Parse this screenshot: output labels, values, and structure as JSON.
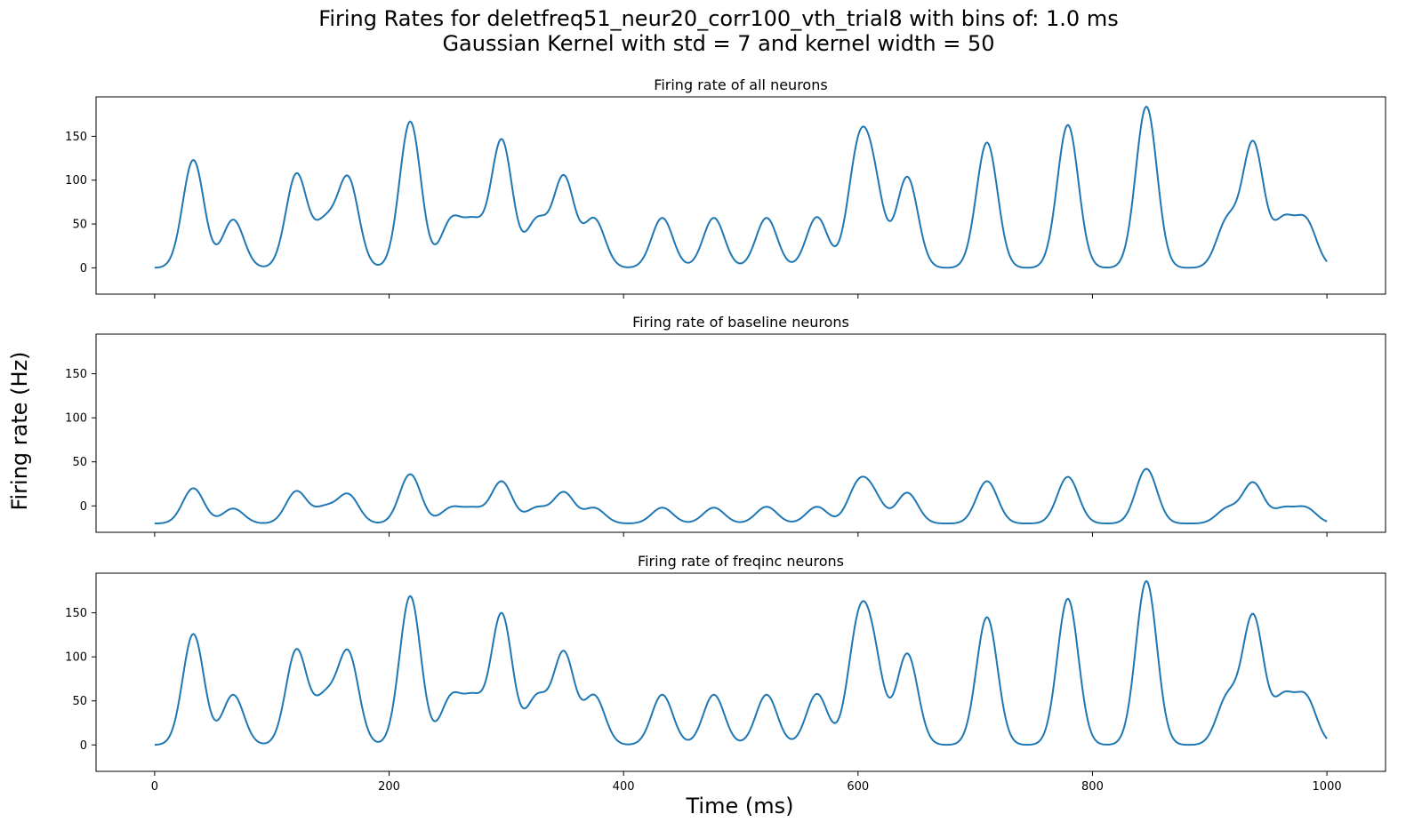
{
  "title_line1": "Firing Rates for deletfreq51_neur20_corr100_vth_trial8 with bins of: 1.0 ms",
  "title_line2": "Gaussian Kernel with std = 7 and kernel width = 50",
  "xlabel": "Time (ms)",
  "ylabel": "Firing rate (Hz)",
  "chart_data": [
    {
      "type": "line",
      "title": "Firing rate of all neurons",
      "xlim": [
        -50,
        1050
      ],
      "ylim": [
        -30,
        195
      ],
      "yticks": [
        0,
        50,
        100,
        150
      ],
      "xticks": [
        0,
        200,
        400,
        600,
        800,
        1000
      ],
      "color": "#1f77b4",
      "peaks": [
        [
          33,
          123
        ],
        [
          67,
          55
        ],
        [
          121,
          108
        ],
        [
          145,
          60
        ],
        [
          165,
          105
        ],
        [
          218,
          167
        ],
        [
          253,
          58
        ],
        [
          272,
          58
        ],
        [
          296,
          147
        ],
        [
          326,
          58
        ],
        [
          349,
          106
        ],
        [
          375,
          57
        ],
        [
          433,
          57
        ],
        [
          477,
          57
        ],
        [
          522,
          57
        ],
        [
          565,
          58
        ],
        [
          600,
          150
        ],
        [
          613,
          130
        ],
        [
          642,
          104
        ],
        [
          710,
          143
        ],
        [
          779,
          163
        ],
        [
          846,
          184
        ],
        [
          915,
          60
        ],
        [
          937,
          145
        ],
        [
          963,
          60
        ],
        [
          982,
          58
        ]
      ]
    },
    {
      "type": "line",
      "title": "Firing rate of baseline neurons",
      "xlim": [
        -50,
        1050
      ],
      "ylim": [
        -30,
        195
      ],
      "yticks": [
        0,
        50,
        100,
        150
      ],
      "xticks": [
        0,
        200,
        400,
        600,
        800,
        1000
      ],
      "color": "#1f77b4",
      "baseline": -20,
      "peaks": [
        [
          33,
          20
        ],
        [
          67,
          -3
        ],
        [
          121,
          17
        ],
        [
          145,
          1
        ],
        [
          165,
          14
        ],
        [
          218,
          36
        ],
        [
          253,
          -1
        ],
        [
          272,
          -1
        ],
        [
          296,
          28
        ],
        [
          326,
          -1
        ],
        [
          349,
          16
        ],
        [
          375,
          -2
        ],
        [
          433,
          -2
        ],
        [
          477,
          -2
        ],
        [
          522,
          -1
        ],
        [
          565,
          -1
        ],
        [
          600,
          30
        ],
        [
          613,
          22
        ],
        [
          642,
          15
        ],
        [
          710,
          28
        ],
        [
          779,
          33
        ],
        [
          846,
          42
        ],
        [
          915,
          -1
        ],
        [
          937,
          27
        ],
        [
          963,
          -1
        ],
        [
          982,
          -1
        ]
      ]
    },
    {
      "type": "line",
      "title": "Firing rate of freqinc neurons",
      "xlim": [
        -50,
        1050
      ],
      "ylim": [
        -30,
        195
      ],
      "yticks": [
        0,
        50,
        100,
        150
      ],
      "xticks": [
        0,
        200,
        400,
        600,
        800,
        1000
      ],
      "color": "#1f77b4",
      "peaks": [
        [
          33,
          126
        ],
        [
          67,
          57
        ],
        [
          121,
          109
        ],
        [
          145,
          62
        ],
        [
          165,
          108
        ],
        [
          218,
          169
        ],
        [
          253,
          58
        ],
        [
          272,
          59
        ],
        [
          296,
          150
        ],
        [
          326,
          58
        ],
        [
          349,
          107
        ],
        [
          375,
          57
        ],
        [
          433,
          57
        ],
        [
          477,
          57
        ],
        [
          522,
          57
        ],
        [
          565,
          58
        ],
        [
          600,
          152
        ],
        [
          613,
          132
        ],
        [
          642,
          104
        ],
        [
          710,
          145
        ],
        [
          779,
          166
        ],
        [
          846,
          186
        ],
        [
          915,
          60
        ],
        [
          937,
          149
        ],
        [
          963,
          60
        ],
        [
          982,
          58
        ]
      ]
    }
  ]
}
